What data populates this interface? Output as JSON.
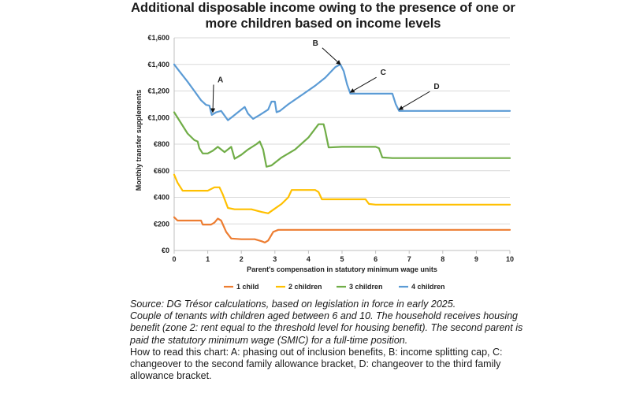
{
  "title": "Additional disposable income owing to the presence of one or more children based on income levels",
  "chart_data": {
    "type": "line",
    "xlabel": "Parent's compensation in statutory minimum wage units",
    "ylabel": "Monthly transfer supplements",
    "xlim": [
      0,
      10
    ],
    "ylim": [
      0,
      1600
    ],
    "xticks": [
      "0",
      "1",
      "2",
      "3",
      "4",
      "5",
      "6",
      "7",
      "8",
      "9",
      "10"
    ],
    "yticks": [
      "€0",
      "€200",
      "€400",
      "€600",
      "€800",
      "€1,000",
      "€1,200",
      "€1,400",
      "€1,600"
    ],
    "grid": "horizontal",
    "legend_position": "bottom",
    "series": [
      {
        "name": "1 child",
        "color": "#ed7d31",
        "points": [
          [
            0,
            250
          ],
          [
            0.1,
            225
          ],
          [
            0.8,
            225
          ],
          [
            0.85,
            195
          ],
          [
            1.1,
            195
          ],
          [
            1.2,
            210
          ],
          [
            1.3,
            240
          ],
          [
            1.4,
            225
          ],
          [
            1.55,
            140
          ],
          [
            1.7,
            90
          ],
          [
            2.0,
            85
          ],
          [
            2.4,
            85
          ],
          [
            2.6,
            70
          ],
          [
            2.7,
            60
          ],
          [
            2.8,
            75
          ],
          [
            2.95,
            140
          ],
          [
            3.1,
            155
          ],
          [
            4.0,
            155
          ],
          [
            5.0,
            155
          ],
          [
            6.0,
            155
          ],
          [
            7.0,
            155
          ],
          [
            8.0,
            155
          ],
          [
            9.0,
            155
          ],
          [
            10.0,
            155
          ]
        ]
      },
      {
        "name": "2 children",
        "color": "#ffc000",
        "points": [
          [
            0,
            570
          ],
          [
            0.1,
            510
          ],
          [
            0.25,
            450
          ],
          [
            1.0,
            450
          ],
          [
            1.2,
            475
          ],
          [
            1.35,
            475
          ],
          [
            1.45,
            420
          ],
          [
            1.6,
            320
          ],
          [
            1.8,
            310
          ],
          [
            2.3,
            310
          ],
          [
            2.6,
            290
          ],
          [
            2.8,
            280
          ],
          [
            3.0,
            315
          ],
          [
            3.2,
            350
          ],
          [
            3.4,
            400
          ],
          [
            3.5,
            455
          ],
          [
            4.2,
            455
          ],
          [
            4.3,
            440
          ],
          [
            4.4,
            385
          ],
          [
            5.7,
            385
          ],
          [
            5.8,
            350
          ],
          [
            6.0,
            345
          ],
          [
            10.0,
            345
          ]
        ]
      },
      {
        "name": "3 children",
        "color": "#70ad47",
        "points": [
          [
            0,
            1040
          ],
          [
            0.2,
            960
          ],
          [
            0.4,
            880
          ],
          [
            0.6,
            830
          ],
          [
            0.7,
            820
          ],
          [
            0.75,
            770
          ],
          [
            0.85,
            730
          ],
          [
            1.0,
            730
          ],
          [
            1.15,
            750
          ],
          [
            1.3,
            780
          ],
          [
            1.5,
            740
          ],
          [
            1.7,
            780
          ],
          [
            1.8,
            690
          ],
          [
            2.0,
            720
          ],
          [
            2.2,
            760
          ],
          [
            2.45,
            800
          ],
          [
            2.55,
            820
          ],
          [
            2.65,
            760
          ],
          [
            2.75,
            630
          ],
          [
            2.9,
            640
          ],
          [
            3.2,
            700
          ],
          [
            3.6,
            760
          ],
          [
            4.0,
            850
          ],
          [
            4.3,
            950
          ],
          [
            4.45,
            950
          ],
          [
            4.5,
            900
          ],
          [
            4.6,
            775
          ],
          [
            5.0,
            780
          ],
          [
            5.5,
            780
          ],
          [
            6.0,
            780
          ],
          [
            6.1,
            770
          ],
          [
            6.2,
            700
          ],
          [
            6.5,
            695
          ],
          [
            10.0,
            695
          ]
        ]
      },
      {
        "name": "4 children",
        "color": "#5b9bd5",
        "points": [
          [
            0,
            1400
          ],
          [
            0.15,
            1350
          ],
          [
            0.4,
            1270
          ],
          [
            0.6,
            1200
          ],
          [
            0.8,
            1130
          ],
          [
            0.95,
            1095
          ],
          [
            1.05,
            1090
          ],
          [
            1.12,
            1020
          ],
          [
            1.25,
            1040
          ],
          [
            1.4,
            1050
          ],
          [
            1.6,
            980
          ],
          [
            1.75,
            1010
          ],
          [
            2.0,
            1060
          ],
          [
            2.1,
            1080
          ],
          [
            2.2,
            1030
          ],
          [
            2.35,
            990
          ],
          [
            2.55,
            1020
          ],
          [
            2.8,
            1060
          ],
          [
            2.9,
            1120
          ],
          [
            3.0,
            1120
          ],
          [
            3.05,
            1040
          ],
          [
            3.15,
            1050
          ],
          [
            3.4,
            1100
          ],
          [
            3.8,
            1170
          ],
          [
            4.2,
            1240
          ],
          [
            4.5,
            1300
          ],
          [
            4.8,
            1380
          ],
          [
            4.95,
            1400
          ],
          [
            5.05,
            1350
          ],
          [
            5.15,
            1250
          ],
          [
            5.25,
            1180
          ],
          [
            5.8,
            1180
          ],
          [
            6.5,
            1180
          ],
          [
            6.6,
            1100
          ],
          [
            6.7,
            1050
          ],
          [
            7.0,
            1050
          ],
          [
            10.0,
            1050
          ]
        ]
      }
    ],
    "annotations": [
      {
        "label": "A",
        "x": 1.15,
        "y": 1040
      },
      {
        "label": "B",
        "x": 4.95,
        "y": 1400
      },
      {
        "label": "C",
        "x": 5.25,
        "y": 1190
      },
      {
        "label": "D",
        "x": 6.7,
        "y": 1060
      }
    ]
  },
  "source": {
    "line1": "Source: DG Trésor calculations, based on legislation in force in early 2025.",
    "line2": "Couple of tenants with children aged between 6 and 10. The household receives housing benefit (zone 2: rent equal to the threshold level for housing benefit). The second parent is paid the statutory minimum wage (SMIC) for a full-time position.",
    "line3": "How to read this chart: A: phasing out of inclusion benefits, B: income splitting cap, C: changeover to the second family allowance bracket, D: changeover to the third family allowance bracket."
  }
}
